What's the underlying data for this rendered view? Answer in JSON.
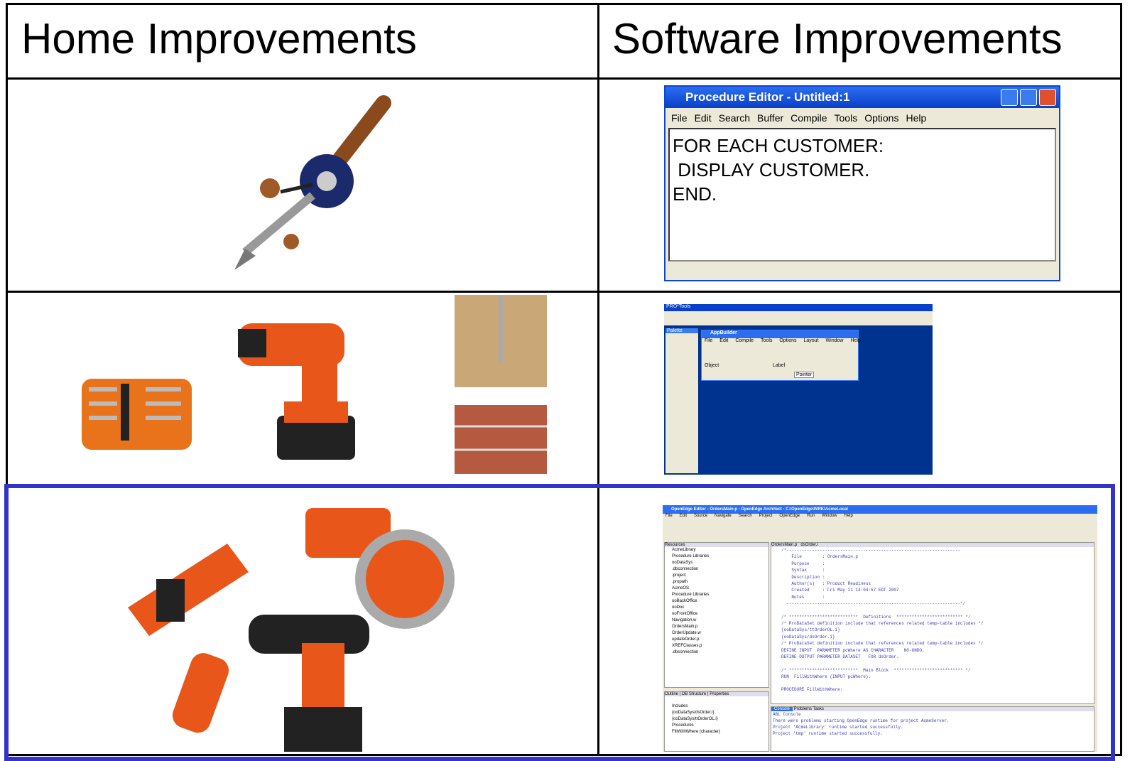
{
  "header": {
    "columns": [
      "Home Improvements",
      "Software Improvements"
    ]
  },
  "procedure_editor": {
    "title": "Procedure Editor - Untitled:1",
    "menu": [
      "File",
      "Edit",
      "Search",
      "Buffer",
      "Compile",
      "Tools",
      "Options",
      "Help"
    ],
    "code": [
      "FOR EACH CUSTOMER:",
      " DISPLAY CUSTOMER.",
      "END."
    ]
  },
  "appbuilder": {
    "toolbar_title": "PRO*Tools",
    "palette_title": "Palette",
    "window_title": "AppBuilder",
    "menu": [
      "File",
      "Edit",
      "Compile",
      "Tools",
      "Options",
      "Layout",
      "Window",
      "Help"
    ],
    "columns": [
      "Object",
      "Label"
    ],
    "field": "Pointer"
  },
  "openedge": {
    "title": "OpenEdge Editor - OrdersMain.p - OpenEdge Architect - C:\\OpenEdge\\WRK\\AcmeLocal",
    "menu": [
      "File",
      "Edit",
      "Source",
      "Navigate",
      "Search",
      "Project",
      "OpenEdge",
      "Run",
      "Window",
      "Help"
    ],
    "tabs": [
      "Resources",
      "OrdersMain.p",
      "dsOrder.i",
      "Console",
      "Problems",
      "Tasks"
    ],
    "tree": [
      "AcmeLibrary",
      "Procedure Libraries",
      "ooDataSys",
      ".dbconnection",
      ".project",
      ".propath",
      "AcmeOS",
      "Procedure Libraries",
      "ooBackOffice",
      "ooDoc",
      "ooFrontOffice",
      "Navigation.w",
      "OrdersMain.p",
      "OrderUpdate.w",
      "updateOrder.p",
      "XREFClasses.p",
      ".dbconnection"
    ],
    "code": [
      "/*--------------------------------------------------------------------",
      "    File        : OrdersMain.p",
      "    Purpose     :",
      "    Syntax      :",
      "    Description :",
      "    Author(s)   : Product Readiness",
      "    Created     : Fri May 11 14:04:57 EDT 2007",
      "    Notes       :",
      "  --------------------------------------------------------------------*/",
      "",
      "/* ***************************  Definitions  ************************** */",
      "/* ProDataSet definition include that references related temp-table includes */",
      "{ooDataSys/ttOrderOL.i}",
      "{ooDataSys/dsOrder.i}",
      "/* ProDataSet definition include that references related temp-table includes */",
      "DEFINE INPUT  PARAMETER pcWhere AS CHARACTER    NO-UNDO.",
      "DEFINE OUTPUT PARAMETER DATASET   FOR dsOrder.",
      "",
      "/* ***************************  Main Block  *************************** */",
      "RUN  FillWithWhere (INPUT pcWhere).",
      "",
      "PROCEDURE FillWithWhere:"
    ],
    "outline_tabs": [
      "Outline",
      "DB Structure",
      "Properties"
    ],
    "outline": [
      "Includes",
      "{ooDataSys/dsOrder.i}",
      "{ooDataSys/ttOrderOL.i}",
      "Procedures",
      "FillWithWhere (character)"
    ],
    "console": [
      "ABL Console",
      "There were problems starting OpenEdge runtime for project AcmeServer.",
      "Project 'AcmeLibrary' runtime started successfully.",
      "Project 'tmp' runtime started successfully."
    ]
  }
}
